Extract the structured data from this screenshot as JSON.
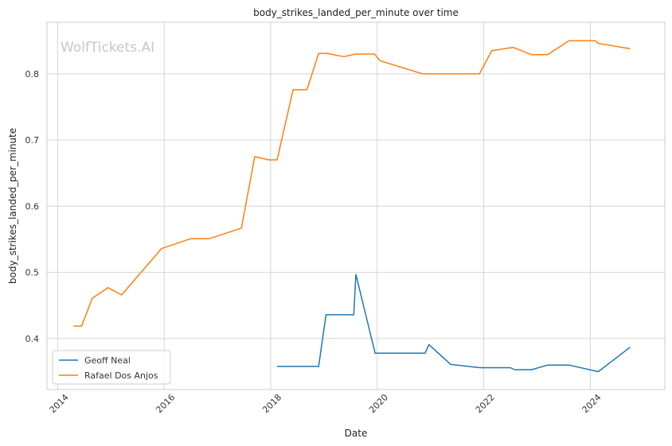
{
  "chart_data": {
    "type": "line",
    "title": "body_strikes_landed_per_minute over time",
    "xlabel": "Date",
    "ylabel": "body_strikes_landed_per_minute",
    "watermark": "WolfTickets.AI",
    "xlim": [
      2013.8,
      2025.4
    ],
    "ylim": [
      0.323,
      0.878
    ],
    "x_ticks": [
      2014,
      2016,
      2018,
      2020,
      2022,
      2024
    ],
    "x_tick_labels": [
      "2014",
      "2016",
      "2018",
      "2020",
      "2022",
      "2024"
    ],
    "y_ticks": [
      0.4,
      0.5,
      0.6,
      0.7,
      0.8
    ],
    "y_tick_labels": [
      "0.4",
      "0.5",
      "0.6",
      "0.7",
      "0.8"
    ],
    "grid": true,
    "legend_position": "lower-left",
    "series": [
      {
        "name": "Geoff Neal",
        "color": "#1f77b4",
        "x": [
          2018.12,
          2018.9,
          2019.04,
          2019.3,
          2019.56,
          2019.6,
          2019.96,
          2020.9,
          2020.97,
          2021.38,
          2021.93,
          2022.5,
          2022.58,
          2022.9,
          2023.2,
          2023.6,
          2024.15,
          2024.75
        ],
        "y": [
          0.358,
          0.358,
          0.436,
          0.436,
          0.436,
          0.497,
          0.378,
          0.378,
          0.391,
          0.361,
          0.356,
          0.356,
          0.353,
          0.353,
          0.36,
          0.36,
          0.35,
          0.387
        ]
      },
      {
        "name": "Rafael Dos Anjos",
        "color": "#ff7f0e",
        "x": [
          2014.3,
          2014.45,
          2014.65,
          2014.95,
          2015.2,
          2015.95,
          2016.5,
          2016.85,
          2017.45,
          2017.7,
          2017.97,
          2018.12,
          2018.42,
          2018.68,
          2018.9,
          2019.05,
          2019.38,
          2019.58,
          2019.95,
          2020.05,
          2020.85,
          2021.92,
          2022.15,
          2022.55,
          2022.9,
          2023.2,
          2023.6,
          2024.1,
          2024.15,
          2024.75
        ],
        "y": [
          0.419,
          0.419,
          0.461,
          0.477,
          0.466,
          0.536,
          0.551,
          0.551,
          0.567,
          0.675,
          0.67,
          0.67,
          0.776,
          0.776,
          0.831,
          0.831,
          0.826,
          0.83,
          0.83,
          0.82,
          0.8,
          0.8,
          0.835,
          0.84,
          0.829,
          0.829,
          0.85,
          0.85,
          0.846,
          0.838
        ]
      }
    ]
  }
}
